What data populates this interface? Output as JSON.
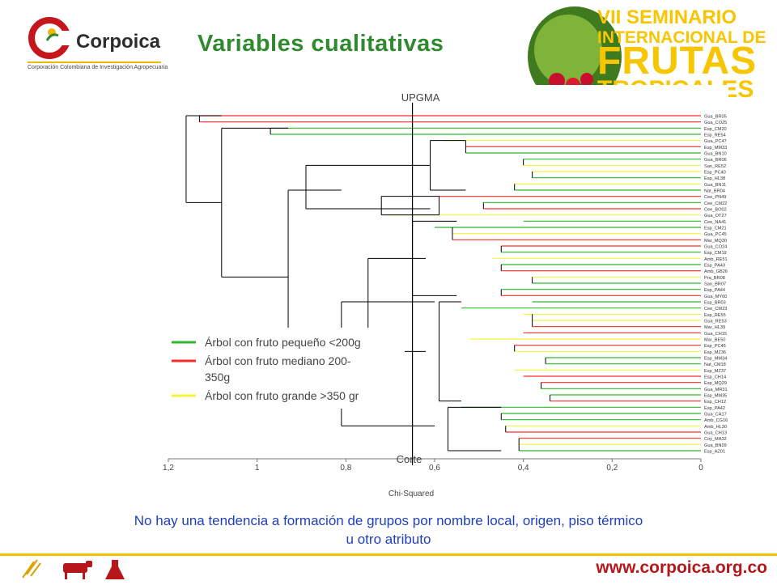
{
  "header": {
    "logo_name": "Corpoica",
    "logo_subtitle": "Corporación Colombiana de Investigación Agropecuaria",
    "title": "Variables cualitativas"
  },
  "banner": {
    "line1": "VII SEMINARIO",
    "line2": "INTERNACIONAL DE",
    "line3": "FRUTAS",
    "line4": "TROPICALES",
    "brand_color": "#f7c600"
  },
  "chart_data": {
    "type": "dendrogram",
    "title": "UPGMA",
    "xlabel": "Chi-Squared",
    "cut_label": "Corte",
    "cut_value": 0.65,
    "xlim": [
      1.2,
      0
    ],
    "x_ticks": [
      "1,2",
      "1",
      "0,8",
      "0,6",
      "0,4",
      "0,2",
      "0"
    ],
    "x_tick_values": [
      1.2,
      1.0,
      0.8,
      0.6,
      0.4,
      0.2,
      0.0
    ],
    "legend": [
      {
        "label": "Árbol con fruto pequeño <200g",
        "color": "#2db82d"
      },
      {
        "label": "Árbol con fruto mediano 200-350g",
        "color": "#ff2a2a"
      },
      {
        "label": "Árbol con fruto grande >350 gr",
        "color": "#f4f43a"
      }
    ],
    "leaves": [
      {
        "name": "Gua_BR05",
        "group": "red",
        "h": 1.13
      },
      {
        "name": "Gua_CO25",
        "group": "red",
        "h": 1.13
      },
      {
        "name": "Esp_CM20",
        "group": "green",
        "h": 0.97
      },
      {
        "name": "Esp_RE54",
        "group": "green",
        "h": 0.97
      },
      {
        "name": "Gua_PC47",
        "group": "yellow",
        "h": 0.58
      },
      {
        "name": "Esp_MM33",
        "group": "red",
        "h": 0.53
      },
      {
        "name": "Gua_BN10",
        "group": "green",
        "h": 0.53
      },
      {
        "name": "Gua_BR06",
        "group": "green",
        "h": 0.4
      },
      {
        "name": "San_RE52",
        "group": "yellow",
        "h": 0.4
      },
      {
        "name": "Esp_PC40",
        "group": "yellow",
        "h": 0.38
      },
      {
        "name": "Esp_HL38",
        "group": "green",
        "h": 0.38
      },
      {
        "name": "Gua_BN11",
        "group": "yellow",
        "h": 0.42
      },
      {
        "name": "Nat_BR04",
        "group": "green",
        "h": 0.42
      },
      {
        "name": "Cee_PN49",
        "group": "red",
        "h": 0.59
      },
      {
        "name": "Cee_CM22",
        "group": "green",
        "h": 0.49
      },
      {
        "name": "Cee_BO02",
        "group": "red",
        "h": 0.49
      },
      {
        "name": "Gua_OT27",
        "group": "yellow",
        "h": 0.71
      },
      {
        "name": "Cee_NA41",
        "group": "green",
        "h": 0.4
      },
      {
        "name": "Esp_CM21",
        "group": "green",
        "h": 0.6
      },
      {
        "name": "Gua_PC45",
        "group": "yellow",
        "h": 0.56
      },
      {
        "name": "Mar_MQ30",
        "group": "red",
        "h": 0.56
      },
      {
        "name": "Gua_CO24",
        "group": "red",
        "h": 0.45
      },
      {
        "name": "Esp_CM19",
        "group": "green",
        "h": 0.45
      },
      {
        "name": "Amb_RE51",
        "group": "yellow",
        "h": 0.47
      },
      {
        "name": "Esp_PA43",
        "group": "green",
        "h": 0.45
      },
      {
        "name": "Amb_GB26",
        "group": "red",
        "h": 0.45
      },
      {
        "name": "Pra_BR08",
        "group": "yellow",
        "h": 0.38
      },
      {
        "name": "San_BR07",
        "group": "green",
        "h": 0.38
      },
      {
        "name": "Esp_PA44",
        "group": "green",
        "h": 0.45
      },
      {
        "name": "Gua_MY60",
        "group": "red",
        "h": 0.45
      },
      {
        "name": "Esp_BR03",
        "group": "green",
        "h": 0.38
      },
      {
        "name": "Cee_CM23",
        "group": "green",
        "h": 0.54
      },
      {
        "name": "Esp_RE55",
        "group": "yellow",
        "h": 0.4
      },
      {
        "name": "Gua_RE53",
        "group": "yellow",
        "h": 0.38
      },
      {
        "name": "Mar_HL39",
        "group": "red",
        "h": 0.38
      },
      {
        "name": "Gua_CH15",
        "group": "red",
        "h": 0.4
      },
      {
        "name": "Mar_BE50",
        "group": "yellow",
        "h": 0.52
      },
      {
        "name": "Esp_PC46",
        "group": "red",
        "h": 0.42
      },
      {
        "name": "Esp_MZ36",
        "group": "yellow",
        "h": 0.42
      },
      {
        "name": "Esp_MM34",
        "group": "green",
        "h": 0.35
      },
      {
        "name": "Nat_CM18",
        "group": "green",
        "h": 0.35
      },
      {
        "name": "Esp_MZ37",
        "group": "yellow",
        "h": 0.42
      },
      {
        "name": "Esp_CH14",
        "group": "red",
        "h": 0.4
      },
      {
        "name": "Esp_MQ29",
        "group": "red",
        "h": 0.36
      },
      {
        "name": "Gua_MR31",
        "group": "green",
        "h": 0.36
      },
      {
        "name": "Esp_MM35",
        "group": "green",
        "h": 0.34
      },
      {
        "name": "Esp_CH12",
        "group": "red",
        "h": 0.34
      },
      {
        "name": "Esp_PA42",
        "group": "green",
        "h": 0.54
      },
      {
        "name": "Gua_CA17",
        "group": "green",
        "h": 0.45
      },
      {
        "name": "Amb_CG16",
        "group": "green",
        "h": 0.45
      },
      {
        "name": "Amb_HL30",
        "group": "yellow",
        "h": 0.44
      },
      {
        "name": "Gua_CH13",
        "group": "red",
        "h": 0.44
      },
      {
        "name": "Coy_MA32",
        "group": "red",
        "h": 0.41
      },
      {
        "name": "Gua_BN09",
        "group": "yellow",
        "h": 0.41
      },
      {
        "name": "Esp_AZ01",
        "group": "green",
        "h": 0.41
      }
    ]
  },
  "note": {
    "line1": "No hay una tendencia a formación de grupos por nombre local, origen, piso térmico",
    "line2": "u otro atributo"
  },
  "footer": {
    "url": "www.corpoica.org.co",
    "icons": [
      "wheat-icon",
      "cow-icon",
      "flask-icon"
    ]
  }
}
